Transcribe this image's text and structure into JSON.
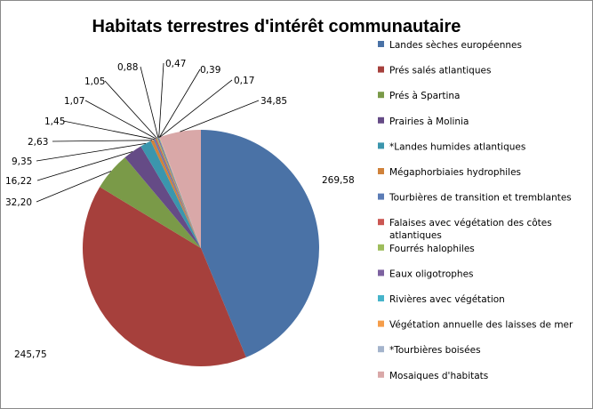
{
  "chart_data": {
    "type": "pie",
    "title": "Habitats terrestres d'intérêt communautaire",
    "legend_position": "right",
    "start_angle_deg": 0,
    "direction": "clockwise",
    "series": [
      {
        "name": "Landes sèches européennes",
        "label": "269,58",
        "value": 269.58,
        "color": "#4a72a6"
      },
      {
        "name": "Prés salés atlantiques",
        "label": "245,75",
        "value": 245.75,
        "color": "#a6403c"
      },
      {
        "name": "Prés à Spartina",
        "label": "32,20",
        "value": 32.2,
        "color": "#7a9a48"
      },
      {
        "name": "Prairies à Molinia",
        "label": "16,22",
        "value": 16.22,
        "color": "#654b86"
      },
      {
        "name": "*Landes humides atlantiques",
        "label": "9,35",
        "value": 9.35,
        "color": "#3b96ad"
      },
      {
        "name": "Mégaphorbiaies hydrophiles",
        "label": "2,63",
        "value": 2.63,
        "color": "#d0823b"
      },
      {
        "name": "Tourbières de transition et tremblantes",
        "label": "1,45",
        "value": 1.45,
        "color": "#5b7cb6"
      },
      {
        "name": "Falaises avec végétation des côtes atlantiques",
        "label": "1,07",
        "value": 1.07,
        "color": "#cb5753"
      },
      {
        "name": "Fourrés halophiles",
        "label": "1,05",
        "value": 1.05,
        "color": "#9ebd5c"
      },
      {
        "name": "Eaux oligotrophes",
        "label": "0,88",
        "value": 0.88,
        "color": "#7d62a0"
      },
      {
        "name": "Rivières avec végétation",
        "label": "0,47",
        "value": 0.47,
        "color": "#46b4ca"
      },
      {
        "name": "Végétation annuelle des laisses de mer",
        "label": "0,39",
        "value": 0.39,
        "color": "#f59d4a"
      },
      {
        "name": "*Tourbières boisées",
        "label": "0,17",
        "value": 0.17,
        "color": "#a4b4cc"
      },
      {
        "name": "Mosaiques d'habitats",
        "label": "34,85",
        "value": 34.85,
        "color": "#d9a8a8"
      }
    ]
  }
}
